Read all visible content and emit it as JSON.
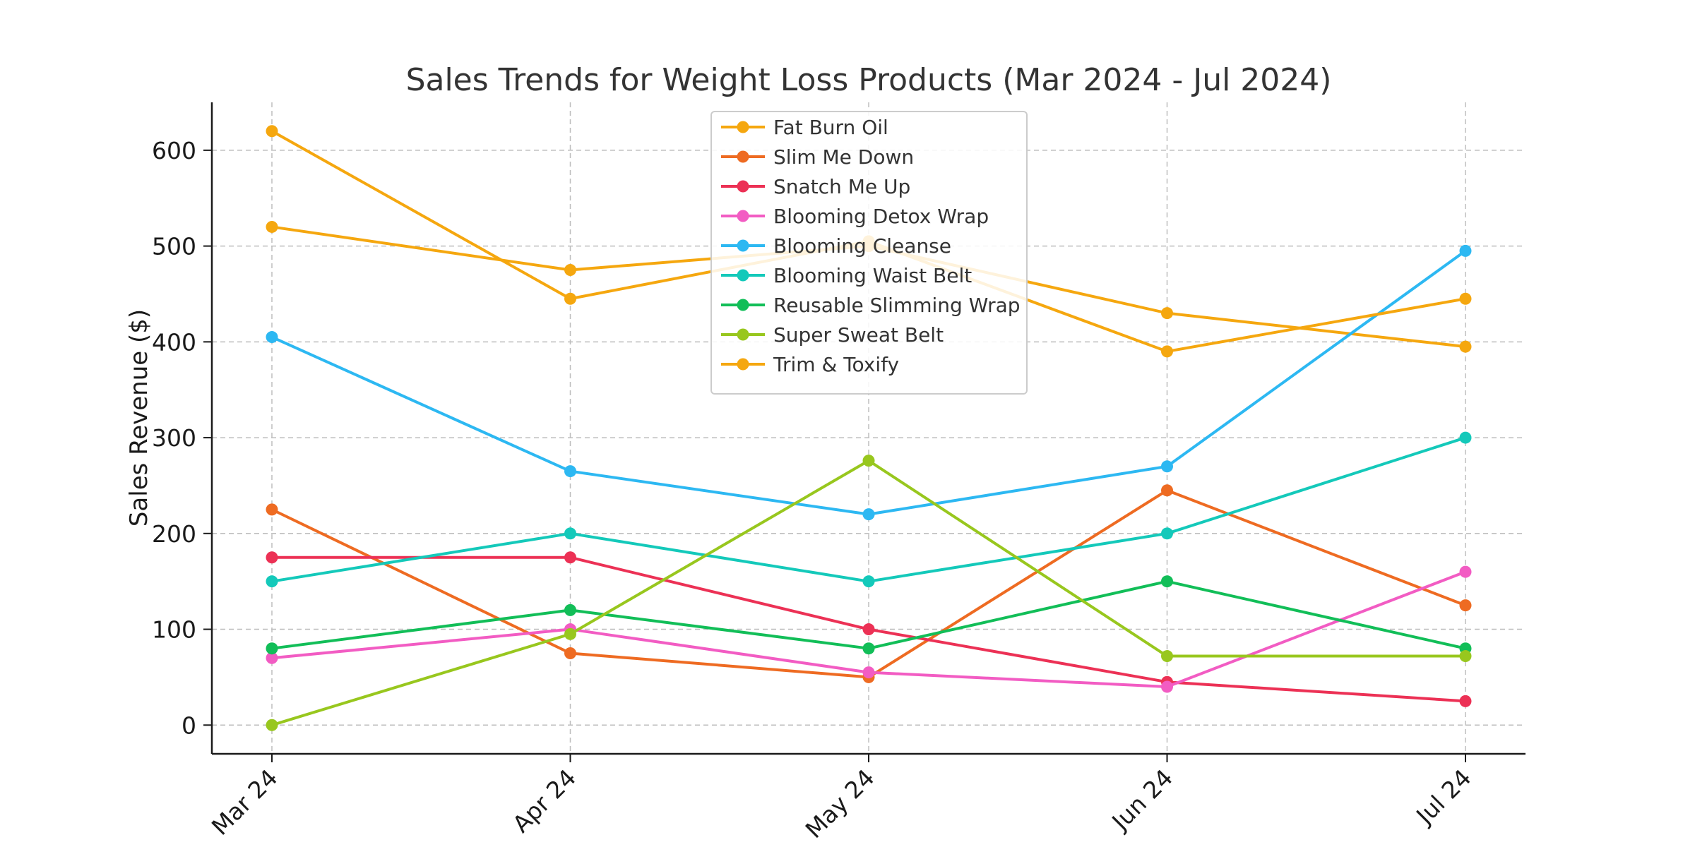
{
  "chart_data": {
    "type": "line",
    "title": "Sales Trends for Weight Loss Products (Mar 2024 - Jul 2024)",
    "xlabel": "",
    "ylabel": "Sales Revenue ($)",
    "categories": [
      "Mar 24",
      "Apr 24",
      "May 24",
      "Jun 24",
      "Jul 24"
    ],
    "ylim": [
      -30,
      650
    ],
    "yticks": [
      0,
      100,
      200,
      300,
      400,
      500,
      600
    ],
    "grid": true,
    "legend_position": "top-center",
    "series": [
      {
        "name": "Fat Burn Oil",
        "color": "#F5A70F",
        "values": [
          520,
          475,
          500,
          430,
          395
        ]
      },
      {
        "name": "Slim Me Down",
        "color": "#EE6B22",
        "values": [
          225,
          75,
          50,
          245,
          125
        ]
      },
      {
        "name": "Snatch Me Up",
        "color": "#EC3155",
        "values": [
          175,
          175,
          100,
          45,
          25
        ]
      },
      {
        "name": "Blooming Detox Wrap",
        "color": "#F25CC3",
        "values": [
          70,
          100,
          55,
          40,
          160
        ]
      },
      {
        "name": "Blooming Cleanse",
        "color": "#2DB8F2",
        "values": [
          405,
          265,
          220,
          270,
          495
        ]
      },
      {
        "name": "Blooming Waist Belt",
        "color": "#14C9BA",
        "values": [
          150,
          200,
          150,
          200,
          300
        ]
      },
      {
        "name": "Reusable Slimming Wrap",
        "color": "#12BE58",
        "values": [
          80,
          120,
          80,
          150,
          80
        ]
      },
      {
        "name": "Super Sweat Belt",
        "color": "#98C71E",
        "values": [
          0,
          95,
          276,
          72,
          72
        ]
      },
      {
        "name": "Trim & Toxify",
        "color": "#F5A70F",
        "values": [
          620,
          445,
          505,
          390,
          445
        ]
      }
    ]
  }
}
